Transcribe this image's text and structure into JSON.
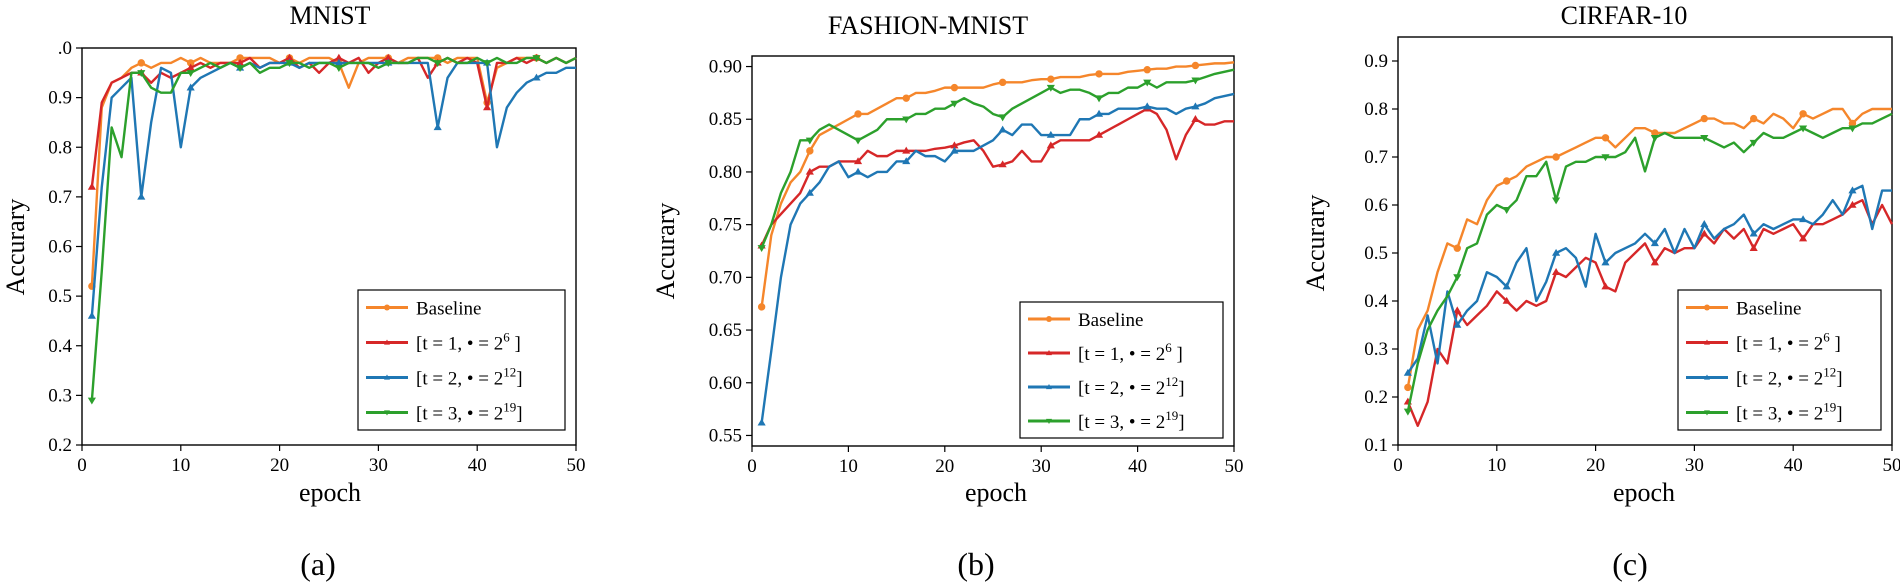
{
  "chart_data": [
    {
      "type": "line",
      "panel_label": "(a)",
      "title": "MNIST",
      "xlabel": "epoch",
      "ylabel": "Accurary",
      "xlim": [
        0,
        50
      ],
      "ylim": [
        0.2,
        1.0
      ],
      "xticks": [
        "0",
        "10",
        "20",
        "30",
        "40",
        "50"
      ],
      "yticks": [
        "0.2",
        "0.3",
        "0.4",
        "0.5",
        "0.6",
        "0.7",
        "0.8",
        "0.9",
        ".0"
      ],
      "legend_position": "bottom-right",
      "series": [
        {
          "name": "Baseline",
          "color": "#f5862b",
          "marker": "circle",
          "values": [
            0.52,
            0.88,
            0.93,
            0.94,
            0.96,
            0.97,
            0.96,
            0.97,
            0.97,
            0.98,
            0.97,
            0.98,
            0.97,
            0.97,
            0.97,
            0.98,
            0.98,
            0.98,
            0.98,
            0.97,
            0.98,
            0.97,
            0.98,
            0.98,
            0.98,
            0.97,
            0.92,
            0.97,
            0.98,
            0.98,
            0.98,
            0.97,
            0.98,
            0.98,
            0.98,
            0.98,
            0.97,
            0.98,
            0.98,
            0.98,
            0.89,
            0.96,
            0.97,
            0.98,
            0.98,
            0.98,
            0.97,
            0.98,
            0.97,
            0.98
          ]
        },
        {
          "name": "[t = 1, • = 2^6 ]",
          "label_base": "[t = 1, • = 2",
          "label_sup": "6",
          "label_end": " ]",
          "color": "#d62728",
          "marker": "triangle",
          "values": [
            0.72,
            0.89,
            0.93,
            0.94,
            0.95,
            0.95,
            0.93,
            0.95,
            0.94,
            0.95,
            0.96,
            0.97,
            0.96,
            0.97,
            0.97,
            0.97,
            0.98,
            0.96,
            0.97,
            0.97,
            0.98,
            0.96,
            0.97,
            0.95,
            0.97,
            0.98,
            0.97,
            0.98,
            0.95,
            0.97,
            0.98,
            0.97,
            0.97,
            0.98,
            0.94,
            0.97,
            0.98,
            0.97,
            0.98,
            0.97,
            0.88,
            0.97,
            0.97,
            0.98,
            0.97,
            0.98,
            0.97,
            0.98,
            0.97,
            0.98
          ]
        },
        {
          "name": "[t = 2, • = 2^12]",
          "label_base": "[t = 2, • = 2",
          "label_sup": "12",
          "label_end": "]",
          "color": "#1f77b4",
          "marker": "triangle",
          "values": [
            0.46,
            0.72,
            0.9,
            0.92,
            0.94,
            0.7,
            0.85,
            0.96,
            0.95,
            0.8,
            0.92,
            0.94,
            0.95,
            0.96,
            0.97,
            0.96,
            0.97,
            0.96,
            0.97,
            0.97,
            0.97,
            0.96,
            0.97,
            0.97,
            0.97,
            0.97,
            0.97,
            0.97,
            0.97,
            0.97,
            0.97,
            0.97,
            0.97,
            0.97,
            0.97,
            0.84,
            0.94,
            0.97,
            0.97,
            0.97,
            0.97,
            0.8,
            0.88,
            0.91,
            0.93,
            0.94,
            0.95,
            0.95,
            0.96,
            0.96
          ]
        },
        {
          "name": "[t = 3, • = 2^19]",
          "label_base": "[t = 3, • = 2",
          "label_sup": "19",
          "label_end": "]",
          "color": "#2ca02c",
          "marker": "triangle-down",
          "values": [
            0.29,
            0.55,
            0.84,
            0.78,
            0.95,
            0.95,
            0.92,
            0.91,
            0.91,
            0.95,
            0.95,
            0.96,
            0.97,
            0.96,
            0.97,
            0.96,
            0.97,
            0.95,
            0.96,
            0.96,
            0.97,
            0.97,
            0.96,
            0.97,
            0.97,
            0.96,
            0.97,
            0.97,
            0.97,
            0.96,
            0.97,
            0.97,
            0.97,
            0.98,
            0.98,
            0.97,
            0.98,
            0.97,
            0.97,
            0.98,
            0.97,
            0.98,
            0.97,
            0.97,
            0.98,
            0.98,
            0.97,
            0.98,
            0.97,
            0.98
          ]
        }
      ]
    },
    {
      "type": "line",
      "panel_label": "(b)",
      "title": "FASHION-MNIST",
      "xlabel": "epoch",
      "ylabel": "Accurary",
      "xlim": [
        0,
        50
      ],
      "ylim": [
        0.54,
        0.91
      ],
      "xticks": [
        "0",
        "10",
        "20",
        "30",
        "40",
        "50"
      ],
      "yticks": [
        "0.55",
        "0.60",
        "0.65",
        "0.70",
        "0.75",
        "0.80",
        "0.85",
        "0.90"
      ],
      "legend_position": "bottom-right",
      "series": [
        {
          "name": "Baseline",
          "color": "#f5862b",
          "marker": "circle",
          "values": [
            0.672,
            0.74,
            0.77,
            0.79,
            0.8,
            0.82,
            0.835,
            0.84,
            0.845,
            0.85,
            0.855,
            0.855,
            0.86,
            0.865,
            0.87,
            0.87,
            0.875,
            0.875,
            0.877,
            0.88,
            0.88,
            0.88,
            0.88,
            0.88,
            0.883,
            0.885,
            0.885,
            0.885,
            0.887,
            0.888,
            0.888,
            0.89,
            0.89,
            0.89,
            0.892,
            0.893,
            0.893,
            0.893,
            0.895,
            0.896,
            0.897,
            0.898,
            0.898,
            0.9,
            0.9,
            0.901,
            0.902,
            0.903,
            0.903,
            0.904
          ]
        },
        {
          "name": "[t = 1, • = 2^6 ]",
          "label_base": "[t = 1, • = 2",
          "label_sup": "6",
          "label_end": " ]",
          "color": "#d62728",
          "marker": "triangle",
          "values": [
            0.73,
            0.75,
            0.76,
            0.77,
            0.78,
            0.8,
            0.805,
            0.805,
            0.81,
            0.81,
            0.81,
            0.82,
            0.815,
            0.815,
            0.82,
            0.82,
            0.82,
            0.82,
            0.822,
            0.823,
            0.825,
            0.828,
            0.83,
            0.82,
            0.805,
            0.807,
            0.81,
            0.82,
            0.81,
            0.81,
            0.825,
            0.83,
            0.83,
            0.83,
            0.83,
            0.835,
            0.84,
            0.845,
            0.85,
            0.855,
            0.86,
            0.855,
            0.84,
            0.812,
            0.835,
            0.85,
            0.845,
            0.845,
            0.848,
            0.848
          ]
        },
        {
          "name": "[t = 2, • = 2^12]",
          "label_base": "[t = 2, • = 2",
          "label_sup": "12",
          "label_end": "]",
          "color": "#1f77b4",
          "marker": "triangle",
          "values": [
            0.562,
            0.63,
            0.7,
            0.75,
            0.77,
            0.78,
            0.79,
            0.805,
            0.81,
            0.795,
            0.8,
            0.795,
            0.8,
            0.8,
            0.81,
            0.81,
            0.82,
            0.815,
            0.815,
            0.81,
            0.82,
            0.82,
            0.82,
            0.825,
            0.83,
            0.84,
            0.835,
            0.845,
            0.845,
            0.835,
            0.835,
            0.835,
            0.835,
            0.85,
            0.85,
            0.855,
            0.855,
            0.86,
            0.86,
            0.86,
            0.862,
            0.86,
            0.86,
            0.855,
            0.86,
            0.862,
            0.865,
            0.87,
            0.872,
            0.874
          ]
        },
        {
          "name": "[t = 3, • = 2^19]",
          "label_base": "[t = 3, • = 2",
          "label_sup": "19",
          "label_end": "]",
          "color": "#2ca02c",
          "marker": "triangle-down",
          "values": [
            0.728,
            0.75,
            0.78,
            0.8,
            0.83,
            0.83,
            0.84,
            0.845,
            0.84,
            0.835,
            0.83,
            0.835,
            0.84,
            0.85,
            0.85,
            0.85,
            0.855,
            0.855,
            0.86,
            0.86,
            0.865,
            0.87,
            0.865,
            0.862,
            0.855,
            0.852,
            0.86,
            0.865,
            0.87,
            0.875,
            0.88,
            0.875,
            0.878,
            0.878,
            0.875,
            0.87,
            0.875,
            0.875,
            0.88,
            0.88,
            0.885,
            0.88,
            0.885,
            0.885,
            0.885,
            0.887,
            0.89,
            0.893,
            0.895,
            0.897
          ]
        }
      ]
    },
    {
      "type": "line",
      "panel_label": "(c)",
      "title": "CIRFAR-10",
      "xlabel": "epoch",
      "ylabel": "Accurary",
      "xlim": [
        0,
        50
      ],
      "ylim": [
        0.1,
        0.95
      ],
      "xticks": [
        "0",
        "10",
        "20",
        "30",
        "40",
        "50"
      ],
      "yticks": [
        "0.1",
        "0.2",
        "0.3",
        "0.4",
        "0.5",
        "0.6",
        "0.7",
        "0.8",
        "0.9"
      ],
      "legend_position": "bottom-right",
      "series": [
        {
          "name": "Baseline",
          "color": "#f5862b",
          "marker": "circle",
          "values": [
            0.22,
            0.34,
            0.38,
            0.46,
            0.52,
            0.51,
            0.57,
            0.56,
            0.61,
            0.64,
            0.65,
            0.66,
            0.68,
            0.69,
            0.7,
            0.7,
            0.71,
            0.72,
            0.73,
            0.74,
            0.74,
            0.72,
            0.74,
            0.76,
            0.76,
            0.75,
            0.75,
            0.75,
            0.76,
            0.77,
            0.78,
            0.78,
            0.77,
            0.77,
            0.76,
            0.78,
            0.77,
            0.79,
            0.78,
            0.76,
            0.79,
            0.78,
            0.79,
            0.8,
            0.8,
            0.77,
            0.79,
            0.8,
            0.8,
            0.8
          ]
        },
        {
          "name": "[t = 1, • = 2^6 ]",
          "label_base": "[t = 1, • = 2",
          "label_sup": "6",
          "label_end": " ]",
          "color": "#d62728",
          "marker": "triangle",
          "values": [
            0.19,
            0.14,
            0.19,
            0.3,
            0.27,
            0.38,
            0.35,
            0.37,
            0.39,
            0.42,
            0.4,
            0.38,
            0.4,
            0.39,
            0.4,
            0.46,
            0.45,
            0.47,
            0.49,
            0.48,
            0.43,
            0.42,
            0.48,
            0.5,
            0.52,
            0.48,
            0.51,
            0.5,
            0.51,
            0.51,
            0.54,
            0.52,
            0.55,
            0.53,
            0.55,
            0.51,
            0.55,
            0.54,
            0.55,
            0.56,
            0.53,
            0.56,
            0.56,
            0.57,
            0.58,
            0.6,
            0.61,
            0.56,
            0.6,
            0.56
          ]
        },
        {
          "name": "[t = 2, • = 2^12]",
          "label_base": "[t = 2, • = 2",
          "label_sup": "12",
          "label_end": "]",
          "color": "#1f77b4",
          "marker": "triangle",
          "values": [
            0.25,
            0.28,
            0.37,
            0.27,
            0.42,
            0.35,
            0.38,
            0.4,
            0.46,
            0.45,
            0.43,
            0.48,
            0.51,
            0.4,
            0.44,
            0.5,
            0.51,
            0.49,
            0.43,
            0.54,
            0.48,
            0.5,
            0.51,
            0.52,
            0.54,
            0.52,
            0.55,
            0.5,
            0.55,
            0.51,
            0.56,
            0.53,
            0.55,
            0.56,
            0.58,
            0.54,
            0.56,
            0.55,
            0.56,
            0.57,
            0.57,
            0.56,
            0.58,
            0.61,
            0.58,
            0.63,
            0.64,
            0.55,
            0.63,
            0.63
          ]
        },
        {
          "name": "[t = 3, • = 2^19]",
          "label_base": "[t = 3, • = 2",
          "label_sup": "19",
          "label_end": "]",
          "color": "#2ca02c",
          "marker": "triangle-down",
          "values": [
            0.17,
            0.27,
            0.34,
            0.38,
            0.41,
            0.45,
            0.51,
            0.52,
            0.58,
            0.6,
            0.59,
            0.61,
            0.66,
            0.66,
            0.69,
            0.61,
            0.68,
            0.69,
            0.69,
            0.7,
            0.7,
            0.7,
            0.71,
            0.74,
            0.67,
            0.74,
            0.75,
            0.74,
            0.74,
            0.74,
            0.74,
            0.73,
            0.72,
            0.73,
            0.71,
            0.73,
            0.75,
            0.74,
            0.74,
            0.75,
            0.76,
            0.75,
            0.74,
            0.75,
            0.76,
            0.76,
            0.77,
            0.77,
            0.78,
            0.79
          ]
        }
      ]
    }
  ]
}
